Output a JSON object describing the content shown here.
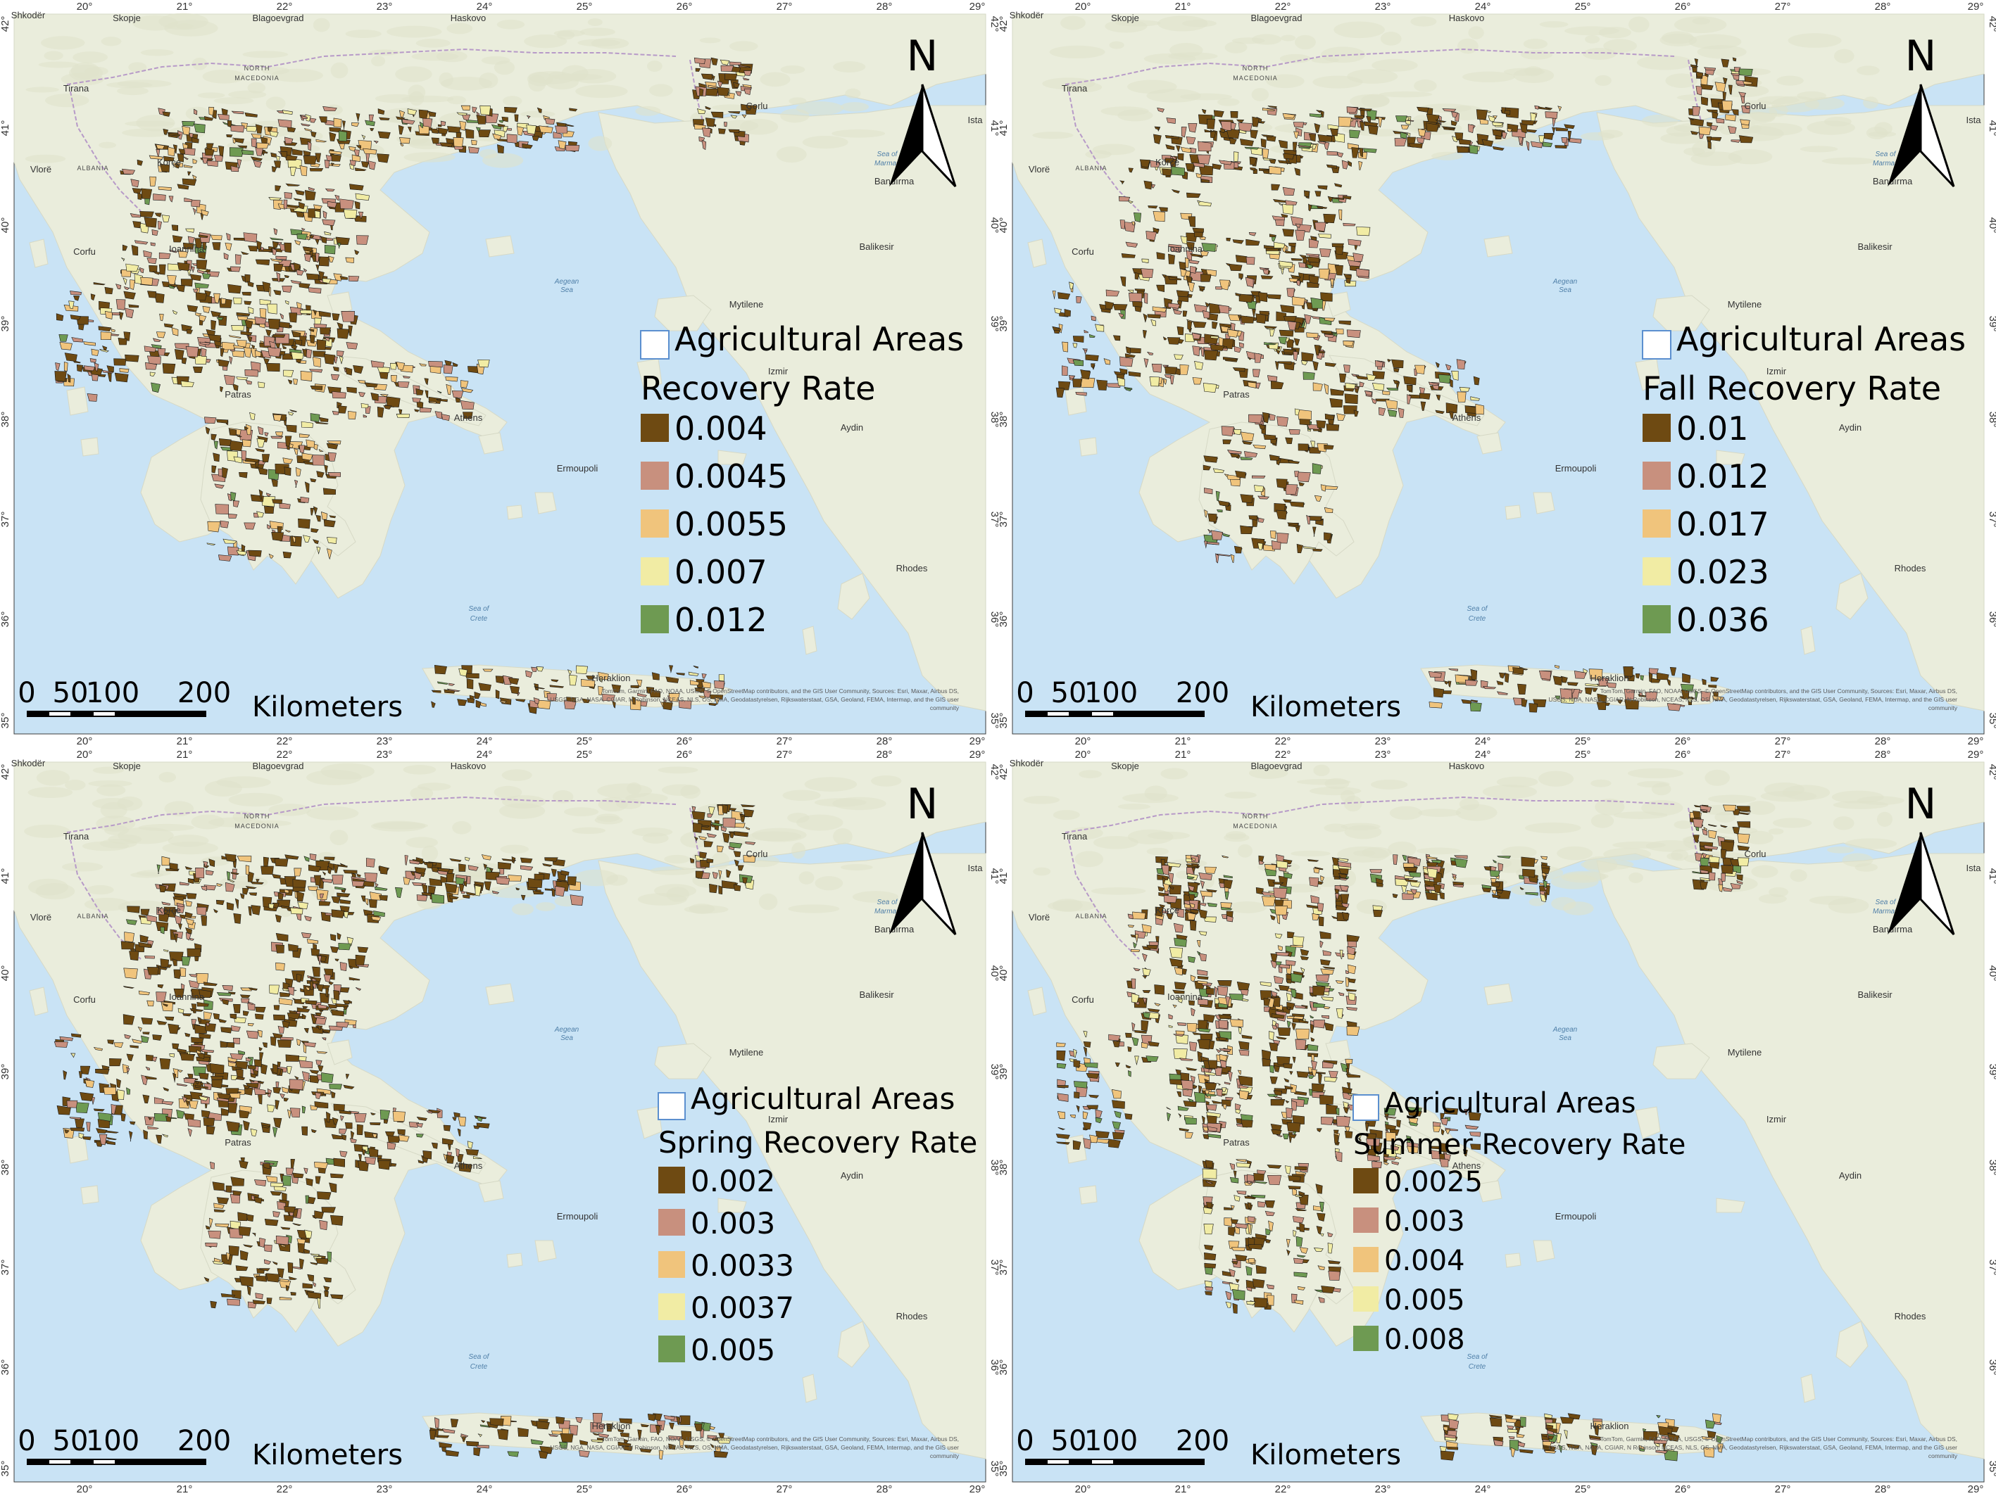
{
  "frame": {
    "lon_labels": [
      "20°",
      "21°",
      "22°",
      "23°",
      "24°",
      "25°",
      "26°",
      "27°",
      "28°",
      "29°"
    ],
    "lat_labels": [
      "42°",
      "41°",
      "40°",
      "39°",
      "38°",
      "37°",
      "36°",
      "35°"
    ]
  },
  "places": {
    "skopje": "Skopje",
    "blagoevgrad": "Blagoevgrad",
    "haskovo": "Haskovo",
    "north": "NORTH",
    "macedonia": "MACEDONIA",
    "tirana": "Tirana",
    "corlu": "Corlu",
    "ist": "Ista",
    "albania": "ALBANIA",
    "korce": "Korçe",
    "vlore": "Vlorë",
    "bandirma": "Bandırma",
    "sea_of": "Sea of",
    "marmara": "Marmara",
    "corfu": "Corfu",
    "ioannina": "Ioannina",
    "balikesir": "Balikesir",
    "aegean": "Aegean",
    "sea": "Sea",
    "mytilene": "Mytilene",
    "izmir": "Izmir",
    "patras": "Patras",
    "athens": "Athens",
    "aydin": "Aydin",
    "ermoupoli": "Ermoupoli",
    "rhodes": "Rhodes",
    "sea_of2": "Sea of",
    "crete": "Crete",
    "heraklion": "Heraklion",
    "skodra": "Shkodër"
  },
  "credits": {
    "line1": "TomTom, Garmin, FAO, NOAA, USGS, © OpenStreetMap contributors, and the GIS User Community, Sources: Esri, Maxar, Airbus DS,",
    "line2": "USGS, NGA, NASA, CGIAR, N Robinson, NCEAS, NLS, OS, NMA, Geodatastyrelsen, Rijkswaterstaat, GSA, Geoland, FEMA, Intermap, and the GIS user",
    "line3": "community"
  },
  "north_label": "N",
  "scale_bar": {
    "labels": [
      "0",
      "50",
      "100",
      "200"
    ],
    "unit": "Kilometers"
  },
  "colors": {
    "class1": "#6e4a12",
    "class2": "#c8907e",
    "class3": "#f0c47c",
    "class4": "#f1eca4",
    "class5": "#6e9a52",
    "sea": "#c9e3f5",
    "land": "#eaeddc",
    "border": "#5b8fcf"
  },
  "panels": [
    {
      "layer_label": "Agricultural Areas",
      "legend_title": "Recovery Rate",
      "classes": [
        "0.004",
        "0.0045",
        "0.0055",
        "0.007",
        "0.012"
      ]
    },
    {
      "layer_label": "Agricultural Areas",
      "legend_title": "Fall Recovery Rate",
      "classes": [
        "0.01",
        "0.012",
        "0.017",
        "0.023",
        "0.036"
      ]
    },
    {
      "layer_label": "Agricultural Areas",
      "legend_title": "Spring Recovery Rate",
      "classes": [
        "0.002",
        "0.003",
        "0.0033",
        "0.0037",
        "0.005"
      ]
    },
    {
      "layer_label": "Agricultural Areas",
      "legend_title": "Summer Recovery Rate",
      "classes": [
        "0.0025",
        "0.003",
        "0.004",
        "0.005",
        "0.008"
      ]
    }
  ]
}
